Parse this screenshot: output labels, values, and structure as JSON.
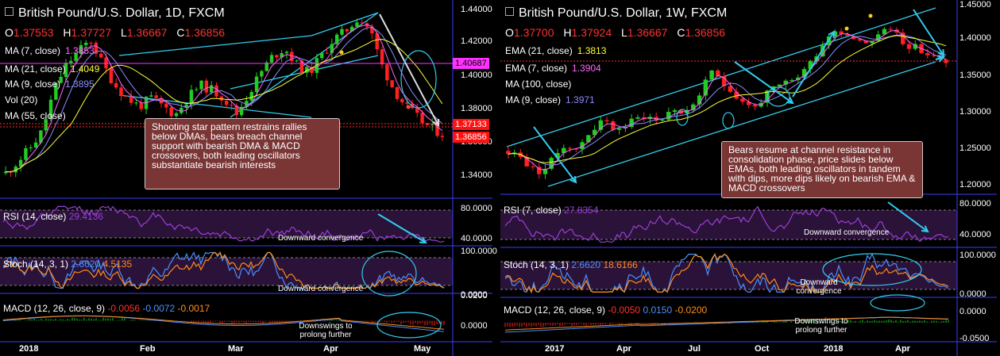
{
  "left": {
    "title": "British Pound/U.S. Dollar, 1D, FXCM",
    "ohlc": {
      "o_label": "O",
      "o": "1.37553",
      "h_label": "H",
      "h": "1.37727",
      "l_label": "L",
      "l": "1.36667",
      "c_label": "C",
      "c": "1.36856"
    },
    "legend": [
      {
        "label": "MA (7, close)",
        "value": "1.3853",
        "color": "#ff66ff"
      },
      {
        "label": "MA (21, close)",
        "value": "1.4049",
        "color": "#ffff33"
      },
      {
        "label": "MA (9, close)",
        "value": "1.3895",
        "color": "#8b8bff"
      },
      {
        "label": "Vol (20)",
        "value": "",
        "color": "#ffffff"
      },
      {
        "label": "MA (55, close)",
        "value": "",
        "color": "#ffffff"
      }
    ],
    "note": "Shooting star pattern restrains rallies below DMAs, bears breach channel support with bearish DMA & MACD crossovers, both leading oscillators substantiate bearish interests",
    "price_axis": [
      "1.44000",
      "1.42000",
      "1.40000",
      "1.38000",
      "1.36000",
      "1.34000"
    ],
    "badges": {
      "b1": "1.40687",
      "b2": "1.37133",
      "b3": "1.36856"
    },
    "rsi": {
      "label": "RSI (14, close)",
      "value": "29.4136",
      "axis": [
        "80.0000",
        "40.0000"
      ],
      "annotation": "Downward convergence"
    },
    "stoch": {
      "label": "Stoch (14, 3, 1)",
      "k": "2.6620",
      "d": "4.5135",
      "axis": [
        "100.0000",
        "0.0000"
      ],
      "annotation": "Downward convergence"
    },
    "macd": {
      "label": "MACD (12, 26, close, 9)",
      "v1": "-0.0056",
      "v2": "-0.0072",
      "v3": "-0.0017",
      "axis": [
        "0.0200",
        "0.0000"
      ],
      "annotation": "Downswings to prolong further"
    },
    "x_axis": [
      "2018",
      "Feb",
      "Mar",
      "Apr",
      "May"
    ],
    "colors": {
      "up": "#22cc22",
      "down": "#ff2020",
      "ma7": "#ff66ff",
      "ma21": "#ffff33",
      "ma9": "#8b8bff",
      "channel": "#33ccee",
      "arrow": "#33ccee",
      "rsi": "#9b3fd6"
    }
  },
  "right": {
    "title": "British Pound/U.S. Dollar, 1W, FXCM",
    "ohlc": {
      "o_label": "O",
      "o": "1.37700",
      "h_label": "H",
      "h": "1.37924",
      "l_label": "L",
      "l": "1.36667",
      "c_label": "C",
      "c": "1.36856"
    },
    "legend": [
      {
        "label": "EMA (21, close)",
        "value": "1.3813",
        "color": "#ffff33"
      },
      {
        "label": "EMA (7, close)",
        "value": "1.3904",
        "color": "#ff66ff"
      },
      {
        "label": "MA (100, close)",
        "value": "",
        "color": "#ffffff"
      },
      {
        "label": "MA (9, close)",
        "value": "1.3971",
        "color": "#8b8bff"
      }
    ],
    "note": "Bears resume at channel resistance in consolidation phase, price slides below EMAs, both leading oscillators in tandem with dips, more dips likely on bearish EMA & MACD crossovers",
    "price_axis": [
      "1.45000",
      "1.40000",
      "1.35000",
      "1.30000",
      "1.25000",
      "1.20000"
    ],
    "rsi": {
      "label": "RSI (7, close)",
      "value": "27.8354",
      "axis": [
        "80.0000",
        "40.0000"
      ],
      "annotation": "Downward convergence"
    },
    "stoch": {
      "label": "Stoch (14, 3, 1)",
      "k": "2.6620",
      "d": "18.6166",
      "axis": [
        "100.0000",
        "0.0000"
      ],
      "annotation": "Downward convergence"
    },
    "macd": {
      "label": "MACD (12, 26, close, 9)",
      "v1": "-0.0050",
      "v2": "0.0150",
      "v3": "-0.0200",
      "axis": [
        "0.0000",
        "-0.0500"
      ],
      "annotation": "Downswings to prolong further"
    },
    "x_axis": [
      "2017",
      "Apr",
      "Jul",
      "Oct",
      "2018",
      "Apr"
    ]
  },
  "chart_data": [
    {
      "type": "candlestick",
      "title": "British Pound/U.S. Dollar, 1D, FXCM",
      "ylim": [
        1.33,
        1.445
      ],
      "x_ticks": [
        "2018",
        "Feb",
        "Mar",
        "Apr",
        "May"
      ],
      "close_path": [
        1.345,
        1.352,
        1.36,
        1.37,
        1.395,
        1.41,
        1.418,
        1.425,
        1.41,
        1.398,
        1.39,
        1.385,
        1.39,
        1.385,
        1.38,
        1.39,
        1.398,
        1.395,
        1.39,
        1.38,
        1.392,
        1.405,
        1.415,
        1.42,
        1.41,
        1.405,
        1.415,
        1.425,
        1.43,
        1.438,
        1.432,
        1.41,
        1.395,
        1.385,
        1.378,
        1.372,
        1.3686
      ],
      "last_close": 1.36856
    },
    {
      "type": "candlestick",
      "title": "British Pound/U.S. Dollar, 1W, FXCM",
      "ylim": [
        1.19,
        1.45
      ],
      "x_ticks": [
        "2017",
        "Apr",
        "Jul",
        "Oct",
        "2018",
        "Apr"
      ],
      "close_path": [
        1.25,
        1.24,
        1.22,
        1.23,
        1.26,
        1.25,
        1.28,
        1.29,
        1.28,
        1.29,
        1.3,
        1.29,
        1.31,
        1.3,
        1.33,
        1.36,
        1.34,
        1.32,
        1.31,
        1.33,
        1.34,
        1.35,
        1.37,
        1.4,
        1.42,
        1.41,
        1.4,
        1.41,
        1.42,
        1.4,
        1.39,
        1.38,
        1.3686
      ],
      "last_close": 1.36856
    }
  ]
}
